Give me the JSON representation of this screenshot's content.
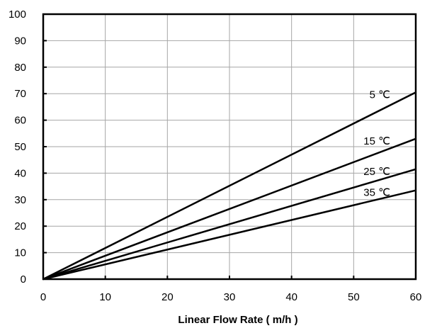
{
  "chart_data": {
    "type": "line",
    "title": "",
    "xlabel": "Linear Flow Rate ( m/h )",
    "ylabel": "",
    "xlim": [
      0,
      60
    ],
    "ylim": [
      0,
      100
    ],
    "x_ticks": [
      "0",
      "10",
      "20",
      "30",
      "40",
      "50",
      "60"
    ],
    "y_ticks": [
      "0",
      "10",
      "20",
      "30",
      "40",
      "50",
      "60",
      "70",
      "80",
      "90",
      "100"
    ],
    "grid": true,
    "legend": "none",
    "series": [
      {
        "name": "5 ℃",
        "x": [
          0,
          60
        ],
        "y": [
          0,
          70.5
        ]
      },
      {
        "name": "15 ℃",
        "x": [
          0,
          60
        ],
        "y": [
          0,
          53
        ]
      },
      {
        "name": "25 ℃",
        "x": [
          0,
          60
        ],
        "y": [
          0,
          41.5
        ]
      },
      {
        "name": "35 ℃",
        "x": [
          0,
          60
        ],
        "y": [
          0,
          33.5
        ]
      }
    ]
  }
}
